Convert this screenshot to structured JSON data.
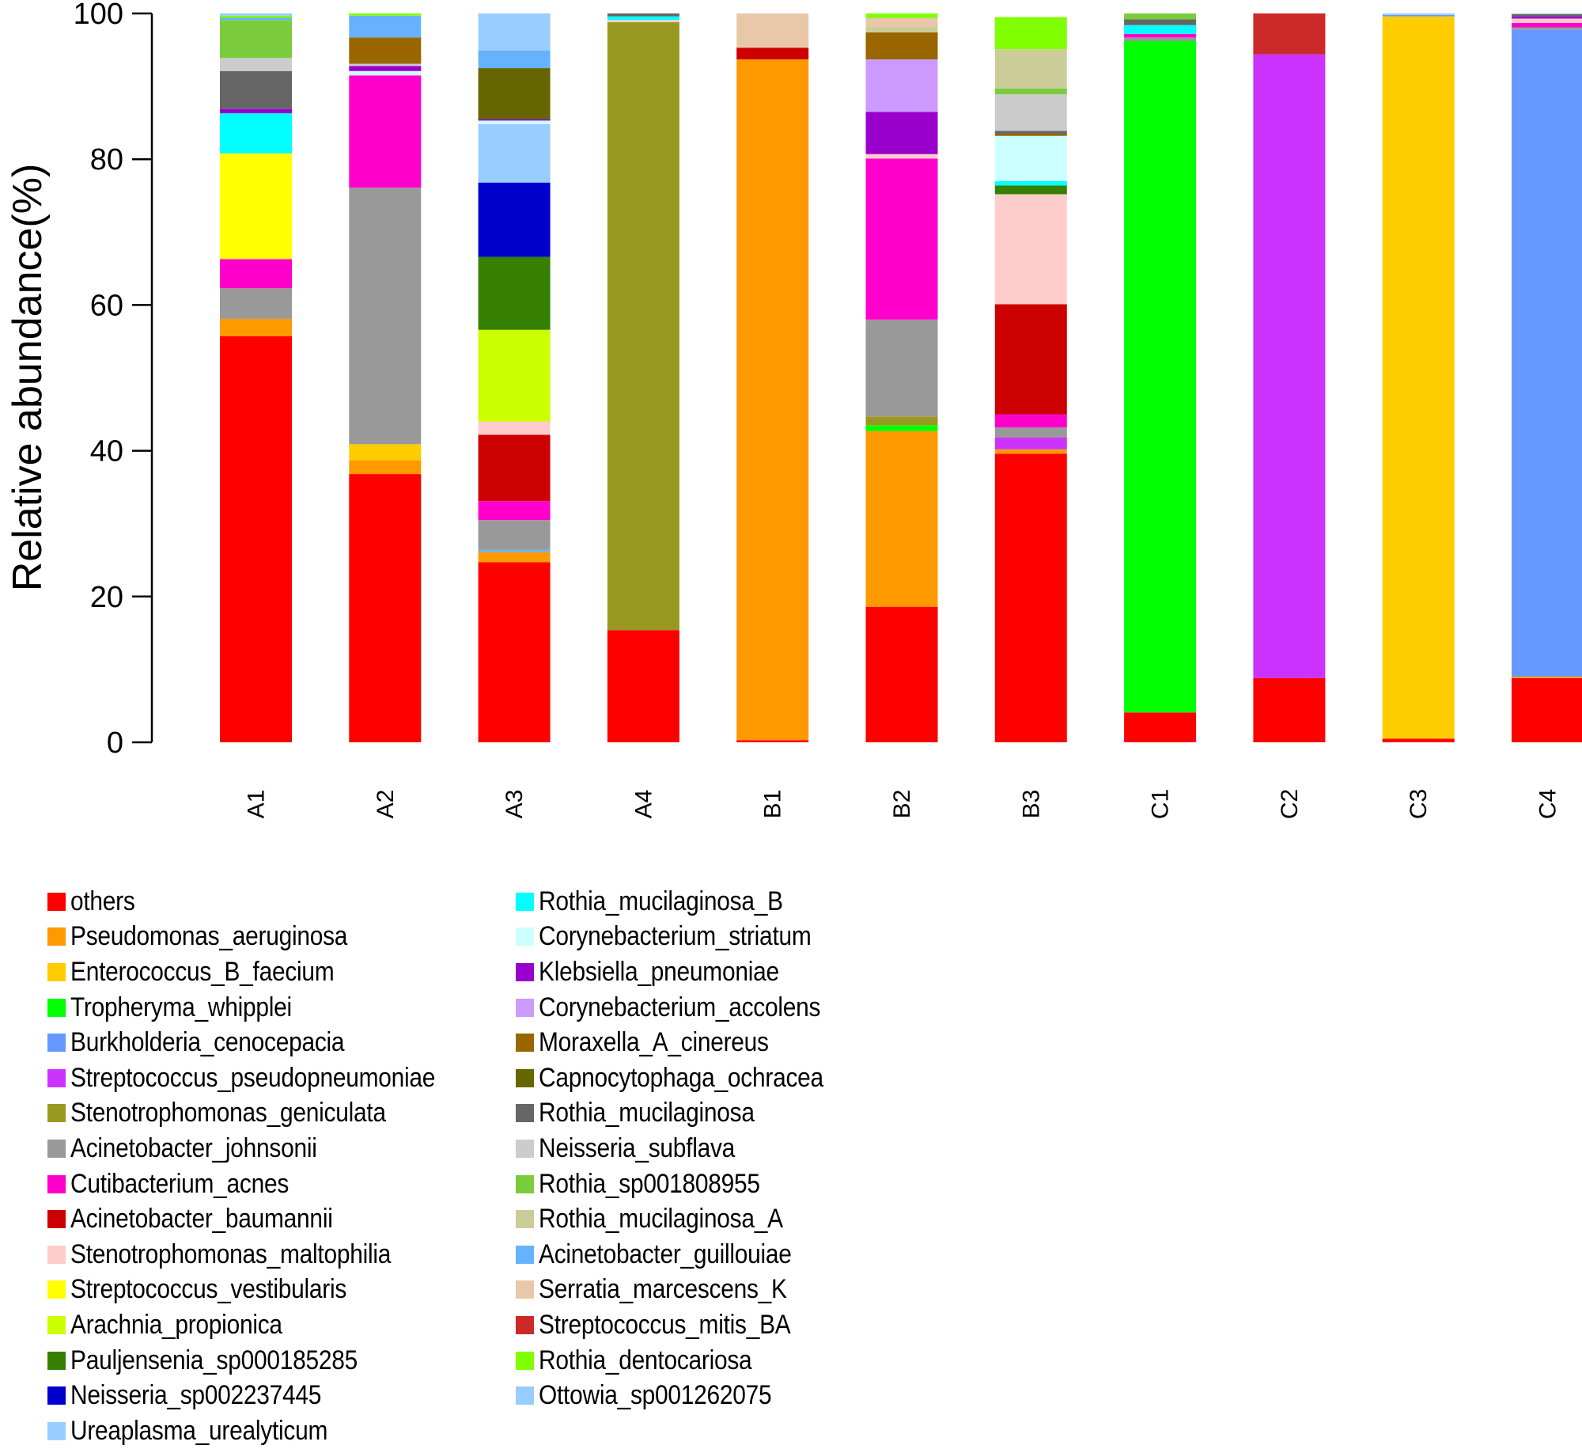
{
  "chart_data": {
    "type": "bar",
    "stacked": true,
    "title": "",
    "xlabel": "",
    "ylabel": "Relative abundance(%)",
    "ylim": [
      0,
      100
    ],
    "yticks": [
      "0",
      "20",
      "40",
      "60",
      "80",
      "100"
    ],
    "grid": false,
    "legend_position": "bottom",
    "categories": [
      "A1",
      "A2",
      "A3",
      "A4",
      "B1",
      "B2",
      "B3",
      "C1",
      "C2",
      "C3",
      "C4"
    ],
    "taxa": [
      {
        "name": "others",
        "color": "#FF0000"
      },
      {
        "name": "Pseudomonas_aeruginosa",
        "color": "#FF9900"
      },
      {
        "name": "Enterococcus_B_faecium",
        "color": "#FFCC00"
      },
      {
        "name": "Tropheryma_whipplei",
        "color": "#00FF00"
      },
      {
        "name": "Burkholderia_cenocepacia",
        "color": "#6699FF"
      },
      {
        "name": "Streptococcus_pseudopneumoniae",
        "color": "#CC33FF"
      },
      {
        "name": "Stenotrophomonas_geniculata",
        "color": "#999922"
      },
      {
        "name": "Acinetobacter_johnsonii",
        "color": "#999999"
      },
      {
        "name": "Cutibacterium_acnes",
        "color": "#FF00CC"
      },
      {
        "name": "Acinetobacter_baumannii",
        "color": "#CC0000"
      },
      {
        "name": "Stenotrophomonas_maltophilia",
        "color": "#FFCCCC"
      },
      {
        "name": "Streptococcus_vestibularis",
        "color": "#FFFF00"
      },
      {
        "name": "Arachnia_propionica",
        "color": "#CCFF00"
      },
      {
        "name": "Pauljensenia_sp000185285",
        "color": "#358000"
      },
      {
        "name": "Neisseria_sp002237445",
        "color": "#0000CC"
      },
      {
        "name": "Ureaplasma_urealyticum",
        "color": "#99CCFF"
      },
      {
        "name": "Rothia_mucilaginosa_B",
        "color": "#00FFFF"
      },
      {
        "name": "Corynebacterium_striatum",
        "color": "#CCFFFF"
      },
      {
        "name": "Klebsiella_pneumoniae",
        "color": "#9900CC"
      },
      {
        "name": "Corynebacterium_accolens",
        "color": "#CC99FF"
      },
      {
        "name": "Moraxella_A_cinereus",
        "color": "#996600"
      },
      {
        "name": "Capnocytophaga_ochracea",
        "color": "#666600"
      },
      {
        "name": "Rothia_mucilaginosa",
        "color": "#666666"
      },
      {
        "name": "Neisseria_subflava",
        "color": "#CCCCCC"
      },
      {
        "name": "Rothia_sp001808955",
        "color": "#7ACC3D"
      },
      {
        "name": "Rothia_mucilaginosa_A",
        "color": "#CCCC99"
      },
      {
        "name": "Acinetobacter_guillouiae",
        "color": "#66B2FF"
      },
      {
        "name": "Serratia_marcescens_K",
        "color": "#E8C8A8"
      },
      {
        "name": "Streptococcus_mitis_BA",
        "color": "#CC2929"
      },
      {
        "name": "Rothia_dentocariosa",
        "color": "#80FF00"
      },
      {
        "name": "Ottowia_sp001262075",
        "color": "#99CCFF"
      }
    ],
    "samples": [
      {
        "name": "A1",
        "segments": [
          {
            "taxon": "others",
            "value": 55.7
          },
          {
            "taxon": "Pseudomonas_aeruginosa",
            "value": 2.4
          },
          {
            "taxon": "Acinetobacter_johnsonii",
            "value": 4.2
          },
          {
            "taxon": "Cutibacterium_acnes",
            "value": 4.0
          },
          {
            "taxon": "Streptococcus_vestibularis",
            "value": 14.5
          },
          {
            "taxon": "Rothia_mucilaginosa_B",
            "value": 5.5
          },
          {
            "taxon": "Klebsiella_pneumoniae",
            "value": 0.6
          },
          {
            "taxon": "Rothia_mucilaginosa",
            "value": 5.2
          },
          {
            "taxon": "Neisseria_subflava",
            "value": 1.8
          },
          {
            "taxon": "Rothia_sp001808955",
            "value": 5.2
          },
          {
            "taxon": "Acinetobacter_guillouiae",
            "value": 0.3
          },
          {
            "taxon": "Rothia_dentocariosa",
            "value": 0.3
          },
          {
            "taxon": "Ottowia_sp001262075",
            "value": 0.3
          }
        ]
      },
      {
        "name": "A2",
        "segments": [
          {
            "taxon": "others",
            "value": 36.8
          },
          {
            "taxon": "Pseudomonas_aeruginosa",
            "value": 1.9
          },
          {
            "taxon": "Enterococcus_B_faecium",
            "value": 2.2
          },
          {
            "taxon": "Acinetobacter_johnsonii",
            "value": 35.2
          },
          {
            "taxon": "Cutibacterium_acnes",
            "value": 15.4
          },
          {
            "taxon": "Corynebacterium_striatum",
            "value": 0.6
          },
          {
            "taxon": "Klebsiella_pneumoniae",
            "value": 0.7
          },
          {
            "taxon": "Neisseria_subflava",
            "value": 0.3
          },
          {
            "taxon": "Moraxella_A_cinereus",
            "value": 3.6
          },
          {
            "taxon": "Acinetobacter_guillouiae",
            "value": 3.0
          },
          {
            "taxon": "Rothia_dentocariosa",
            "value": 0.3
          }
        ]
      },
      {
        "name": "A3",
        "segments": [
          {
            "taxon": "others",
            "value": 24.7
          },
          {
            "taxon": "Pseudomonas_aeruginosa",
            "value": 1.4
          },
          {
            "taxon": "Acinetobacter_guillouiae",
            "value": 0.3
          },
          {
            "taxon": "Acinetobacter_johnsonii",
            "value": 4.1
          },
          {
            "taxon": "Cutibacterium_acnes",
            "value": 2.6
          },
          {
            "taxon": "Acinetobacter_baumannii",
            "value": 9.1
          },
          {
            "taxon": "Stenotrophomonas_maltophilia",
            "value": 1.8
          },
          {
            "taxon": "Arachnia_propionica",
            "value": 12.6
          },
          {
            "taxon": "Pauljensenia_sp000185285",
            "value": 10.0
          },
          {
            "taxon": "Neisseria_sp002237445",
            "value": 10.2
          },
          {
            "taxon": "Ureaplasma_urealyticum",
            "value": 8.0
          },
          {
            "taxon": "Corynebacterium_striatum",
            "value": 0.5
          },
          {
            "taxon": "Klebsiella_pneumoniae",
            "value": 0.2
          },
          {
            "taxon": "Capnocytophaga_ochracea",
            "value": 7.0
          },
          {
            "taxon": "Acinetobacter_guillouiae",
            "value": 2.4
          },
          {
            "taxon": "Ottowia_sp001262075",
            "value": 5.1
          }
        ]
      },
      {
        "name": "A4",
        "segments": [
          {
            "taxon": "others",
            "value": 15.4
          },
          {
            "taxon": "Stenotrophomonas_geniculata",
            "value": 83.4
          },
          {
            "taxon": "Stenotrophomonas_maltophilia",
            "value": 0.3
          },
          {
            "taxon": "Rothia_mucilaginosa_B",
            "value": 0.5
          },
          {
            "taxon": "Rothia_mucilaginosa",
            "value": 0.4
          }
        ]
      },
      {
        "name": "B1",
        "segments": [
          {
            "taxon": "others",
            "value": 0.3
          },
          {
            "taxon": "Pseudomonas_aeruginosa",
            "value": 93.4
          },
          {
            "taxon": "Acinetobacter_baumannii",
            "value": 1.6
          },
          {
            "taxon": "Serratia_marcescens_K",
            "value": 4.7
          }
        ]
      },
      {
        "name": "B2",
        "segments": [
          {
            "taxon": "others",
            "value": 18.6
          },
          {
            "taxon": "Pseudomonas_aeruginosa",
            "value": 24.1
          },
          {
            "taxon": "Tropheryma_whipplei",
            "value": 0.8
          },
          {
            "taxon": "Stenotrophomonas_geniculata",
            "value": 1.2
          },
          {
            "taxon": "Acinetobacter_johnsonii",
            "value": 13.3
          },
          {
            "taxon": "Cutibacterium_acnes",
            "value": 22.1
          },
          {
            "taxon": "Stenotrophomonas_maltophilia",
            "value": 0.6
          },
          {
            "taxon": "Klebsiella_pneumoniae",
            "value": 5.8
          },
          {
            "taxon": "Corynebacterium_accolens",
            "value": 7.2
          },
          {
            "taxon": "Moraxella_A_cinereus",
            "value": 3.7
          },
          {
            "taxon": "Rothia_mucilaginosa_A",
            "value": 0.8
          },
          {
            "taxon": "Serratia_marcescens_K",
            "value": 1.2
          },
          {
            "taxon": "Rothia_dentocariosa",
            "value": 0.6
          }
        ]
      },
      {
        "name": "B3",
        "segments": [
          {
            "taxon": "others",
            "value": 39.6
          },
          {
            "taxon": "Pseudomonas_aeruginosa",
            "value": 0.6
          },
          {
            "taxon": "Streptococcus_pseudopneumoniae",
            "value": 1.6
          },
          {
            "taxon": "Acinetobacter_johnsonii",
            "value": 1.4
          },
          {
            "taxon": "Cutibacterium_acnes",
            "value": 1.8
          },
          {
            "taxon": "Acinetobacter_baumannii",
            "value": 15.1
          },
          {
            "taxon": "Stenotrophomonas_maltophilia",
            "value": 15.1
          },
          {
            "taxon": "Pauljensenia_sp000185285",
            "value": 1.2
          },
          {
            "taxon": "Rothia_mucilaginosa_B",
            "value": 0.6
          },
          {
            "taxon": "Corynebacterium_striatum",
            "value": 6.2
          },
          {
            "taxon": "Moraxella_A_cinereus",
            "value": 0.3
          },
          {
            "taxon": "Rothia_mucilaginosa",
            "value": 0.4
          },
          {
            "taxon": "Neisseria_subflava",
            "value": 5.0
          },
          {
            "taxon": "Rothia_sp001808955",
            "value": 0.8
          },
          {
            "taxon": "Rothia_mucilaginosa_A",
            "value": 5.4
          },
          {
            "taxon": "Rothia_dentocariosa",
            "value": 4.4
          }
        ]
      },
      {
        "name": "C1",
        "segments": [
          {
            "taxon": "others",
            "value": 4.1
          },
          {
            "taxon": "Tropheryma_whipplei",
            "value": 92.1
          },
          {
            "taxon": "Acinetobacter_johnsonii",
            "value": 0.5
          },
          {
            "taxon": "Cutibacterium_acnes",
            "value": 0.5
          },
          {
            "taxon": "Rothia_mucilaginosa_B",
            "value": 1.2
          },
          {
            "taxon": "Rothia_mucilaginosa",
            "value": 0.8
          },
          {
            "taxon": "Rothia_sp001808955",
            "value": 0.8
          }
        ]
      },
      {
        "name": "C2",
        "segments": [
          {
            "taxon": "others",
            "value": 8.8
          },
          {
            "taxon": "Streptococcus_pseudopneumoniae",
            "value": 85.6
          },
          {
            "taxon": "Streptococcus_mitis_BA",
            "value": 5.6
          }
        ]
      },
      {
        "name": "C3",
        "segments": [
          {
            "taxon": "others",
            "value": 0.5
          },
          {
            "taxon": "Enterococcus_B_faecium",
            "value": 99.1
          },
          {
            "taxon": "Burkholderia_cenocepacia",
            "value": 0.2
          },
          {
            "taxon": "Ottowia_sp001262075",
            "value": 0.2
          }
        ]
      },
      {
        "name": "C4",
        "segments": [
          {
            "taxon": "others",
            "value": 8.8
          },
          {
            "taxon": "Pseudomonas_aeruginosa",
            "value": 0.2
          },
          {
            "taxon": "Burkholderia_cenocepacia",
            "value": 88.8
          },
          {
            "taxon": "Acinetobacter_johnsonii",
            "value": 0.3
          },
          {
            "taxon": "Cutibacterium_acnes",
            "value": 0.6
          },
          {
            "taxon": "Stenotrophomonas_maltophilia",
            "value": 0.6
          },
          {
            "taxon": "Klebsiella_pneumoniae",
            "value": 0.3
          },
          {
            "taxon": "Rothia_mucilaginosa",
            "value": 0.3
          },
          {
            "taxon": "Ottowia_sp001262075",
            "value": 0.1
          }
        ]
      }
    ]
  },
  "legend": {
    "column1": [
      {
        "label": "others",
        "color": "#FF0000"
      },
      {
        "label": "Pseudomonas_aeruginosa",
        "color": "#FF9900"
      },
      {
        "label": "Enterococcus_B_faecium",
        "color": "#FFCC00"
      },
      {
        "label": "Tropheryma_whipplei",
        "color": "#00FF00"
      },
      {
        "label": "Burkholderia_cenocepacia",
        "color": "#6699FF"
      },
      {
        "label": "Streptococcus_pseudopneumoniae",
        "color": "#CC33FF"
      },
      {
        "label": "Stenotrophomonas_geniculata",
        "color": "#999922"
      },
      {
        "label": "Acinetobacter_johnsonii",
        "color": "#999999"
      },
      {
        "label": "Cutibacterium_acnes",
        "color": "#FF00CC"
      },
      {
        "label": "Acinetobacter_baumannii",
        "color": "#CC0000"
      },
      {
        "label": "Stenotrophomonas_maltophilia",
        "color": "#FFCCCC"
      },
      {
        "label": "Streptococcus_vestibularis",
        "color": "#FFFF00"
      },
      {
        "label": "Arachnia_propionica",
        "color": "#CCFF00"
      },
      {
        "label": "Pauljensenia_sp000185285",
        "color": "#358000"
      },
      {
        "label": "Neisseria_sp002237445",
        "color": "#0000CC"
      },
      {
        "label": "Ureaplasma_urealyticum",
        "color": "#99CCFF"
      }
    ],
    "column2": [
      {
        "label": "Rothia_mucilaginosa_B",
        "color": "#00FFFF"
      },
      {
        "label": "Corynebacterium_striatum",
        "color": "#CCFFFF"
      },
      {
        "label": "Klebsiella_pneumoniae",
        "color": "#9900CC"
      },
      {
        "label": "Corynebacterium_accolens",
        "color": "#CC99FF"
      },
      {
        "label": "Moraxella_A_cinereus",
        "color": "#996600"
      },
      {
        "label": "Capnocytophaga_ochracea",
        "color": "#666600"
      },
      {
        "label": "Rothia_mucilaginosa",
        "color": "#666666"
      },
      {
        "label": "Neisseria_subflava",
        "color": "#CCCCCC"
      },
      {
        "label": "Rothia_sp001808955",
        "color": "#7ACC3D"
      },
      {
        "label": "Rothia_mucilaginosa_A",
        "color": "#CCCC99"
      },
      {
        "label": "Acinetobacter_guillouiae",
        "color": "#66B2FF"
      },
      {
        "label": "Serratia_marcescens_K",
        "color": "#E8C8A8"
      },
      {
        "label": "Streptococcus_mitis_BA",
        "color": "#CC2929"
      },
      {
        "label": "Rothia_dentocariosa",
        "color": "#80FF00"
      },
      {
        "label": "Ottowia_sp001262075",
        "color": "#99CCFF"
      }
    ]
  }
}
